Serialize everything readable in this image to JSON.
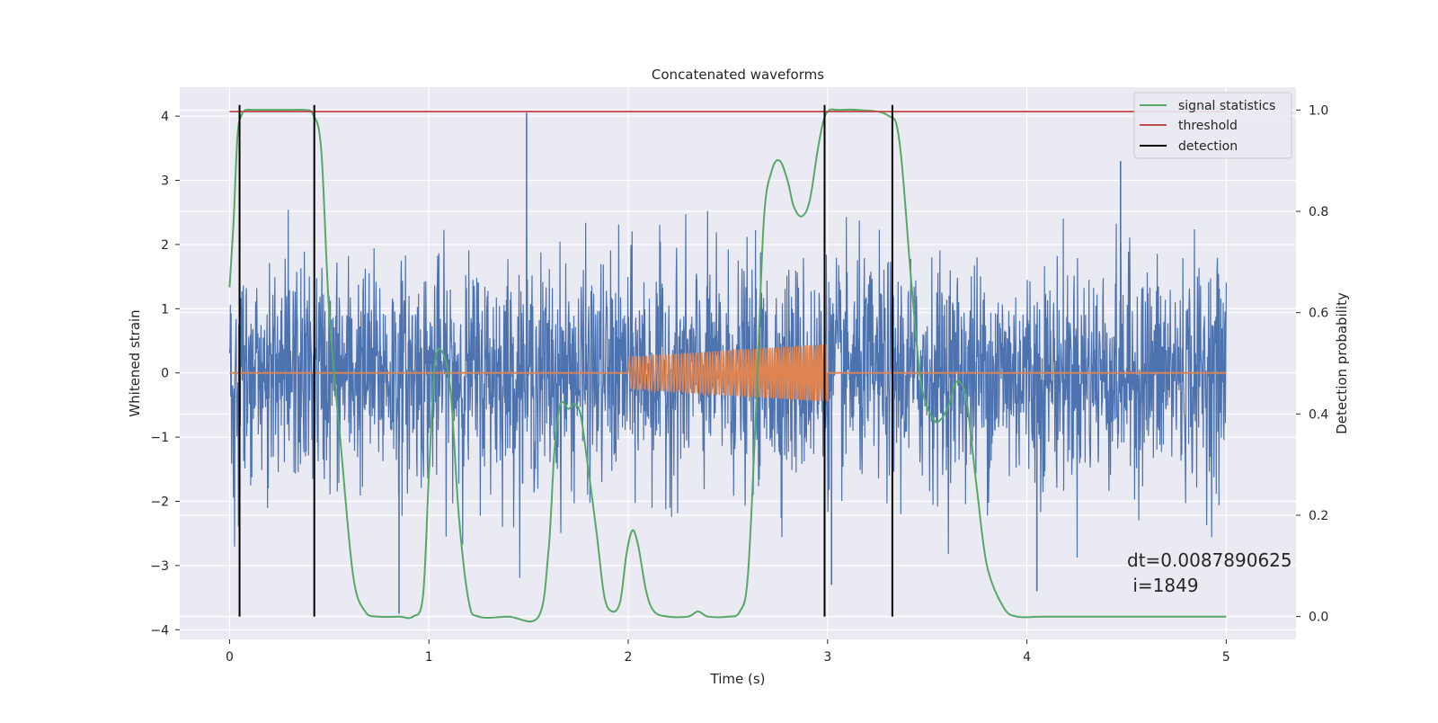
{
  "chart_data": {
    "type": "line",
    "title": "Concatenated waveforms",
    "xlabel": "Time (s)",
    "ylabel": "Whitened strain",
    "y2label": "Detection probability",
    "xlim": [
      -0.25,
      5.35
    ],
    "ylim": [
      -4.15,
      4.45
    ],
    "y2lim": [
      -0.045,
      1.045
    ],
    "x_ticks": [
      0,
      1,
      2,
      3,
      4,
      5
    ],
    "y_ticks": [
      -4,
      -3,
      -2,
      -1,
      0,
      1,
      2,
      3,
      4
    ],
    "y2_ticks": [
      0.0,
      0.2,
      0.4,
      0.6,
      0.8,
      1.0
    ],
    "x_tick_labels": [
      "0",
      "1",
      "2",
      "3",
      "4",
      "5"
    ],
    "y_tick_labels": [
      "−4",
      "−3",
      "−2",
      "−1",
      "0",
      "1",
      "2",
      "3",
      "4"
    ],
    "y2_tick_labels": [
      "0.0",
      "0.2",
      "0.4",
      "0.6",
      "0.8",
      "1.0"
    ],
    "grid": true,
    "legend_position": "top-right",
    "colors": {
      "strain": "#4c72b0",
      "template": "#dd8452",
      "signal_statistics": "#55a868",
      "threshold": "#c44e52",
      "detection": "#000000",
      "axes_bg": "#eaeaf2",
      "grid": "#ffffff"
    },
    "series": [
      {
        "name": "",
        "axis": "left",
        "kind": "noise",
        "x_range": [
          0,
          5
        ],
        "std": 0.85,
        "min": -3.75,
        "max": 4.05,
        "notable_peaks": [
          {
            "x": 1.49,
            "y": 4.05
          },
          {
            "x": 0.85,
            "y": -3.75
          },
          {
            "x": 4.47,
            "y": 3.3
          },
          {
            "x": 4.05,
            "y": -3.4
          },
          {
            "x": 3.02,
            "y": -3.3
          }
        ]
      },
      {
        "name": "",
        "axis": "left",
        "kind": "chirp",
        "x": [
          0,
          2.0,
          2.0,
          3.0,
          3.0,
          5
        ],
        "amplitude": [
          0,
          0,
          0.25,
          0.45,
          0,
          0
        ]
      },
      {
        "name": "signal statistics",
        "axis": "right",
        "x": [
          0.0,
          0.02,
          0.04,
          0.06,
          0.08,
          0.12,
          0.2,
          0.3,
          0.38,
          0.42,
          0.46,
          0.5,
          0.56,
          0.62,
          0.68,
          0.75,
          0.85,
          0.92,
          0.97,
          1.0,
          1.03,
          1.07,
          1.11,
          1.15,
          1.2,
          1.25,
          1.4,
          1.55,
          1.6,
          1.63,
          1.66,
          1.7,
          1.73,
          1.76,
          1.79,
          1.84,
          1.88,
          1.92,
          1.96,
          1.99,
          2.02,
          2.05,
          2.09,
          2.13,
          2.2,
          2.3,
          2.35,
          2.4,
          2.5,
          2.56,
          2.6,
          2.64,
          2.68,
          2.72,
          2.76,
          2.8,
          2.83,
          2.87,
          2.91,
          2.95,
          2.98,
          3.01,
          3.05,
          3.15,
          3.3,
          3.36,
          3.42,
          3.47,
          3.53,
          3.57,
          3.61,
          3.64,
          3.67,
          3.7,
          3.75,
          3.8,
          3.88,
          3.95,
          4.1,
          4.5,
          5.0
        ],
        "values": [
          0.65,
          0.78,
          0.95,
          0.99,
          1.0,
          1.0,
          1.0,
          1.0,
          1.0,
          0.99,
          0.92,
          0.6,
          0.33,
          0.08,
          0.01,
          0.0,
          0.0,
          0.0,
          0.04,
          0.28,
          0.5,
          0.52,
          0.44,
          0.2,
          0.03,
          0.0,
          0.0,
          0.0,
          0.13,
          0.33,
          0.42,
          0.41,
          0.42,
          0.4,
          0.32,
          0.17,
          0.04,
          0.01,
          0.03,
          0.12,
          0.17,
          0.14,
          0.05,
          0.01,
          0.0,
          0.0,
          0.01,
          0.0,
          0.0,
          0.01,
          0.08,
          0.4,
          0.78,
          0.88,
          0.9,
          0.86,
          0.81,
          0.79,
          0.82,
          0.92,
          0.98,
          1.0,
          1.0,
          1.0,
          0.99,
          0.94,
          0.66,
          0.46,
          0.39,
          0.39,
          0.42,
          0.46,
          0.46,
          0.42,
          0.25,
          0.1,
          0.02,
          0.0,
          0.0,
          0.0,
          0.0
        ]
      },
      {
        "name": "threshold",
        "axis": "right",
        "x": [
          0,
          5
        ],
        "values": [
          0.997,
          0.997
        ]
      },
      {
        "name": "detection",
        "axis": "right",
        "kind": "vlines",
        "x": [
          0.05,
          0.425,
          2.985,
          3.325
        ],
        "ymin": 0.0,
        "ymax": 1.01
      }
    ],
    "legend": [
      "signal statistics",
      "threshold",
      "detection"
    ],
    "annotation": {
      "lines": [
        "dt=0.0087890625",
        " i=1849"
      ]
    }
  }
}
